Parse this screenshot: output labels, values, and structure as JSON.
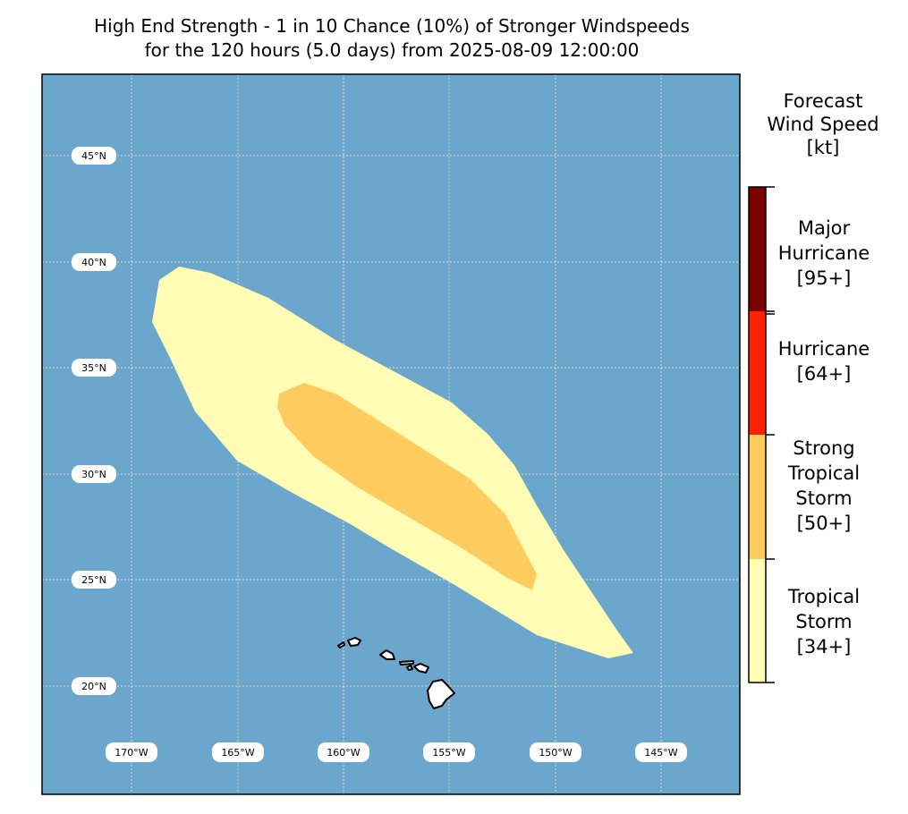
{
  "title": {
    "line1": "High End Strength - 1 in 10 Chance (10%) of Stronger Windspeeds",
    "line2": "for the 120 hours (5.0 days) from 2025-08-09 12:00:00"
  },
  "map": {
    "ocean_color": "#6BA6CC",
    "land_color": "#FFFFFF",
    "gridline_color": "#D9D9D9",
    "latitude_labels": [
      "45°N",
      "40°N",
      "35°N",
      "30°N",
      "25°N",
      "20°N"
    ],
    "longitude_labels": [
      "170°W",
      "165°W",
      "160°W",
      "155°W",
      "150°W",
      "145°W"
    ],
    "zones": [
      {
        "category": "Tropical Storm [34+]",
        "color": "#FFFDB5"
      },
      {
        "category": "Strong Tropical Storm [50+]",
        "color": "#FECB5E"
      }
    ]
  },
  "colorbar": {
    "title_lines": [
      "Forecast",
      "Wind Speed",
      "[kt]"
    ],
    "segments": [
      {
        "lines": [
          "Major",
          "Hurricane",
          "[95+]"
        ],
        "color": "#7A0000"
      },
      {
        "lines": [
          "Hurricane",
          "[64+]"
        ],
        "color": "#FF2200"
      },
      {
        "lines": [
          "Strong",
          "Tropical",
          "Storm",
          "[50+]"
        ],
        "color": "#FECB5E"
      },
      {
        "lines": [
          "Tropical",
          "Storm",
          "[34+]"
        ],
        "color": "#FFFDB5"
      }
    ]
  }
}
